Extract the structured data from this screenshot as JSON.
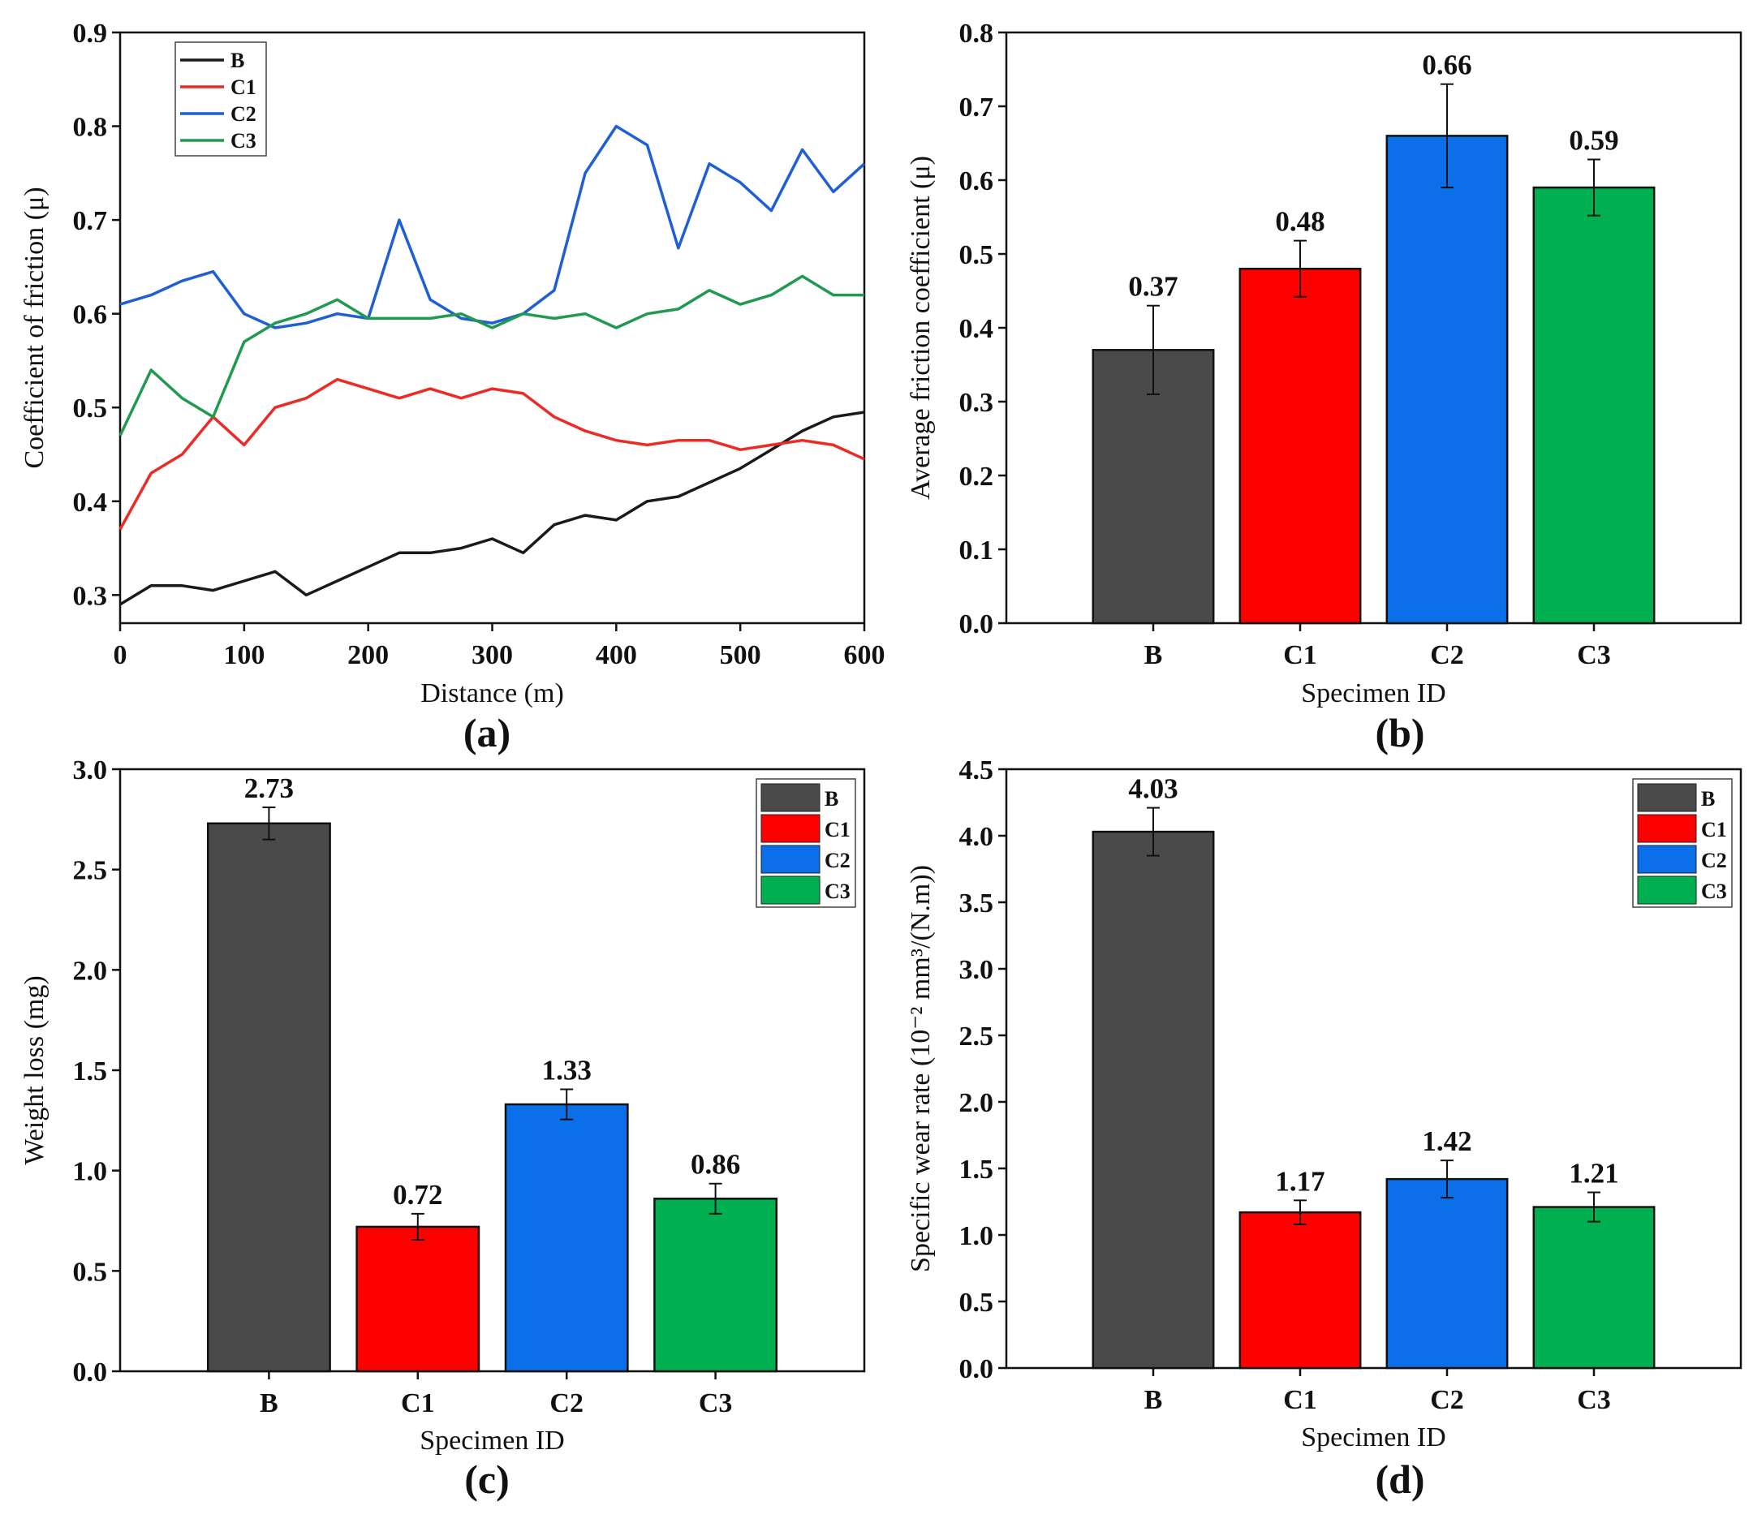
{
  "chart_data": [
    {
      "panel": "(a)",
      "type": "line",
      "xlabel": "Distance (m)",
      "ylabel": "Coefficient of friction (μ)",
      "xlim": [
        0,
        600
      ],
      "ylim": [
        0.27,
        0.9
      ],
      "xticks": [
        "0",
        "100",
        "200",
        "300",
        "400",
        "500",
        "600"
      ],
      "yticks": [
        "0.3",
        "0.4",
        "0.5",
        "0.6",
        "0.7",
        "0.8",
        "0.9"
      ],
      "legend_position": "top-left",
      "x": [
        0,
        25,
        50,
        75,
        100,
        125,
        150,
        175,
        200,
        225,
        250,
        275,
        300,
        325,
        350,
        375,
        400,
        425,
        450,
        475,
        500,
        525,
        550,
        575,
        600
      ],
      "series": [
        {
          "name": "B",
          "color": "#1a1a1a",
          "values": [
            0.29,
            0.31,
            0.31,
            0.305,
            0.315,
            0.325,
            0.3,
            0.315,
            0.33,
            0.345,
            0.345,
            0.35,
            0.36,
            0.345,
            0.375,
            0.385,
            0.38,
            0.4,
            0.405,
            0.42,
            0.435,
            0.455,
            0.475,
            0.49,
            0.495
          ]
        },
        {
          "name": "C1",
          "color": "#ee2a24",
          "values": [
            0.37,
            0.43,
            0.45,
            0.49,
            0.46,
            0.5,
            0.51,
            0.53,
            0.52,
            0.51,
            0.52,
            0.51,
            0.52,
            0.515,
            0.49,
            0.475,
            0.465,
            0.46,
            0.465,
            0.465,
            0.455,
            0.46,
            0.465,
            0.46,
            0.445
          ]
        },
        {
          "name": "C2",
          "color": "#1f5fd6",
          "values": [
            0.61,
            0.62,
            0.635,
            0.645,
            0.6,
            0.585,
            0.59,
            0.6,
            0.595,
            0.7,
            0.615,
            0.595,
            0.59,
            0.6,
            0.625,
            0.75,
            0.8,
            0.78,
            0.67,
            0.76,
            0.74,
            0.71,
            0.775,
            0.73,
            0.76
          ]
        },
        {
          "name": "C3",
          "color": "#1f9a4e",
          "values": [
            0.47,
            0.54,
            0.51,
            0.49,
            0.57,
            0.59,
            0.6,
            0.615,
            0.595,
            0.595,
            0.595,
            0.6,
            0.585,
            0.6,
            0.595,
            0.6,
            0.585,
            0.6,
            0.605,
            0.625,
            0.61,
            0.62,
            0.64,
            0.62,
            0.62
          ]
        }
      ]
    },
    {
      "panel": "(b)",
      "type": "bar",
      "xlabel": "Specimen ID",
      "ylabel": "Average friction coefficient (μ)",
      "ylim": [
        0,
        0.8
      ],
      "yticks": [
        "0.0",
        "0.1",
        "0.2",
        "0.3",
        "0.4",
        "0.5",
        "0.6",
        "0.7",
        "0.8"
      ],
      "categories": [
        "B",
        "C1",
        "C2",
        "C3"
      ],
      "values": [
        0.37,
        0.48,
        0.66,
        0.59
      ],
      "errors": [
        0.06,
        0.038,
        0.07,
        0.038
      ],
      "value_labels": [
        "0.37",
        "0.48",
        "0.66",
        "0.59"
      ],
      "colors": [
        "#4a4a4a",
        "#ff0000",
        "#0a6fe8",
        "#00b050"
      ]
    },
    {
      "panel": "(c)",
      "type": "bar",
      "xlabel": "Specimen ID",
      "ylabel": "Weight loss (mg)",
      "ylim": [
        0,
        3.0
      ],
      "yticks": [
        "0.0",
        "0.5",
        "1.0",
        "1.5",
        "2.0",
        "2.5",
        "3.0"
      ],
      "categories": [
        "B",
        "C1",
        "C2",
        "C3"
      ],
      "values": [
        2.73,
        0.72,
        1.33,
        0.86
      ],
      "errors": [
        0.08,
        0.065,
        0.075,
        0.075
      ],
      "value_labels": [
        "2.73",
        "0.72",
        "1.33",
        "0.86"
      ],
      "colors": [
        "#4a4a4a",
        "#ff0000",
        "#0a6fe8",
        "#00b050"
      ],
      "legend_position": "top-right"
    },
    {
      "panel": "(d)",
      "type": "bar",
      "xlabel": "Specimen ID",
      "ylabel": "Specific wear rate (10⁻² mm³/(N.m))",
      "ylim": [
        0,
        4.5
      ],
      "yticks": [
        "0.0",
        "0.5",
        "1.0",
        "1.5",
        "2.0",
        "2.5",
        "3.0",
        "3.5",
        "4.0",
        "4.5"
      ],
      "categories": [
        "B",
        "C1",
        "C2",
        "C3"
      ],
      "values": [
        4.03,
        1.17,
        1.42,
        1.21
      ],
      "errors": [
        0.18,
        0.09,
        0.14,
        0.11
      ],
      "value_labels": [
        "4.03",
        "1.17",
        "1.42",
        "1.21"
      ],
      "colors": [
        "#4a4a4a",
        "#ff0000",
        "#0a6fe8",
        "#00b050"
      ],
      "legend_position": "top-right"
    }
  ]
}
